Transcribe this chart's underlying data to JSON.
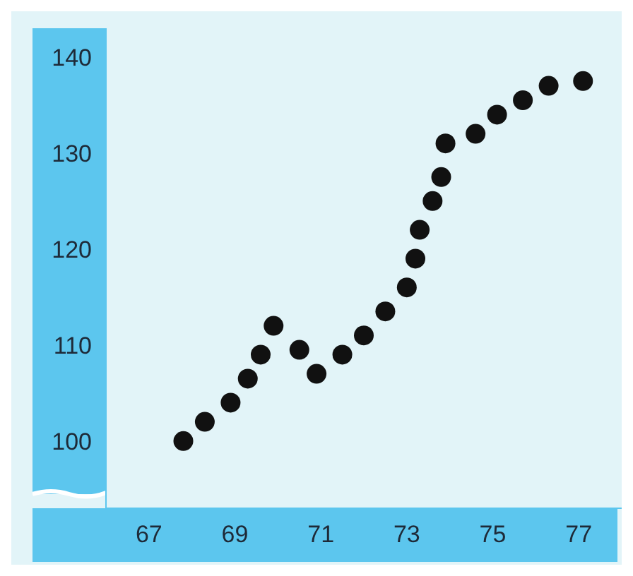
{
  "chart_data": {
    "type": "scatter",
    "marker": "circle",
    "color": "#111111",
    "x": [
      67.8,
      68.3,
      68.9,
      69.3,
      69.6,
      69.9,
      70.5,
      70.9,
      71.5,
      72.0,
      72.5,
      73.0,
      73.2,
      73.3,
      73.6,
      73.8,
      73.9,
      74.6,
      75.1,
      75.7,
      76.3,
      77.1
    ],
    "values": [
      100,
      102,
      104,
      106.5,
      109,
      112,
      109.5,
      107,
      109,
      111,
      113.5,
      116,
      119,
      122,
      125,
      127.5,
      131,
      132,
      134,
      135.5,
      137,
      137.5
    ],
    "xlim": [
      66,
      78
    ],
    "xticks": [
      67,
      69,
      71,
      73,
      75,
      77
    ],
    "ylim": [
      93,
      143
    ],
    "yticks": [
      100,
      110,
      120,
      130,
      140
    ]
  }
}
